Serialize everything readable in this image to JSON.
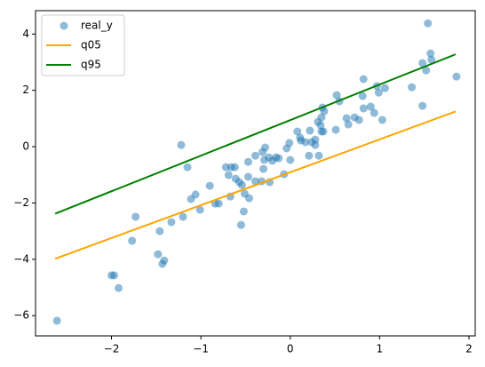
{
  "chart_data": {
    "type": "scatter",
    "xlim": [
      -2.85,
      2.07
    ],
    "ylim": [
      -6.72,
      4.83
    ],
    "xticks": [
      {
        "value": -2,
        "label": "−2"
      },
      {
        "value": -1,
        "label": "−1"
      },
      0,
      1,
      2
    ],
    "yticks": [
      {
        "value": -6,
        "label": "−6"
      },
      {
        "value": -4,
        "label": "−4"
      },
      {
        "value": -2,
        "label": "−2"
      },
      0,
      2,
      4
    ],
    "legend": "upper left",
    "series": [
      {
        "name": "real_y",
        "type": "scatter",
        "color": "#1f77b4",
        "x": [
          -2.61,
          -2.0,
          -1.97,
          -1.92,
          -1.77,
          -1.73,
          -1.48,
          -1.46,
          -1.43,
          -1.41,
          -1.33,
          -1.22,
          -1.15,
          -1.2,
          -1.11,
          -1.06,
          -1.01,
          -0.9,
          -0.84,
          -0.8,
          -0.72,
          -0.69,
          -0.66,
          -0.62,
          -0.67,
          -0.61,
          -0.57,
          -0.54,
          -0.55,
          -0.52,
          -0.51,
          -0.47,
          -0.47,
          -0.46,
          -0.39,
          -0.39,
          -0.32,
          -0.31,
          -0.3,
          -0.29,
          -0.28,
          -0.24,
          -0.23,
          -0.2,
          -0.16,
          -0.13,
          -0.07,
          -0.04,
          0.0,
          -0.01,
          0.08,
          0.11,
          0.12,
          0.17,
          0.21,
          0.22,
          0.24,
          0.28,
          0.28,
          0.32,
          0.31,
          0.34,
          0.35,
          0.35,
          0.36,
          0.38,
          0.37,
          0.51,
          0.52,
          0.55,
          0.63,
          0.65,
          0.72,
          0.77,
          0.82,
          0.81,
          0.82,
          0.9,
          0.94,
          0.97,
          0.99,
          1.03,
          1.06,
          1.36,
          1.48,
          1.48,
          1.52,
          1.54,
          1.57,
          1.58,
          1.86
        ],
        "values": [
          -6.18,
          -4.57,
          -4.57,
          -5.02,
          -3.34,
          -2.49,
          -3.82,
          -3.0,
          -4.16,
          -4.04,
          -2.68,
          0.06,
          -0.73,
          -2.49,
          -1.86,
          -1.7,
          -2.24,
          -1.39,
          -2.02,
          -2.02,
          -0.73,
          -1.01,
          -0.73,
          -0.73,
          -1.77,
          -1.14,
          -1.26,
          -1.36,
          -2.78,
          -2.3,
          -1.67,
          -0.54,
          -1.07,
          -1.83,
          -0.32,
          -1.23,
          -1.23,
          -0.19,
          -0.79,
          -0.47,
          -0.03,
          -0.38,
          -1.26,
          -0.5,
          -0.38,
          -0.41,
          -0.98,
          -0.06,
          -0.47,
          0.13,
          0.54,
          0.32,
          0.22,
          0.16,
          -0.32,
          0.57,
          0.16,
          0.25,
          0.06,
          -0.32,
          0.88,
          0.76,
          1.04,
          0.54,
          1.39,
          1.26,
          0.54,
          0.6,
          1.83,
          1.61,
          1.01,
          0.79,
          1.04,
          0.95,
          2.4,
          1.8,
          1.36,
          1.42,
          1.2,
          2.15,
          1.92,
          0.95,
          2.08,
          2.11,
          2.97,
          1.45,
          2.71,
          4.38,
          3.31,
          3.09,
          2.49
        ]
      },
      {
        "name": "q05",
        "type": "line",
        "color": "#ffa500",
        "x": [
          -2.63,
          1.85
        ],
        "values": [
          -3.98,
          1.25
        ]
      },
      {
        "name": "q95",
        "type": "line",
        "color": "#008000",
        "x": [
          -2.63,
          1.85
        ],
        "values": [
          -2.38,
          3.28
        ]
      }
    ]
  }
}
